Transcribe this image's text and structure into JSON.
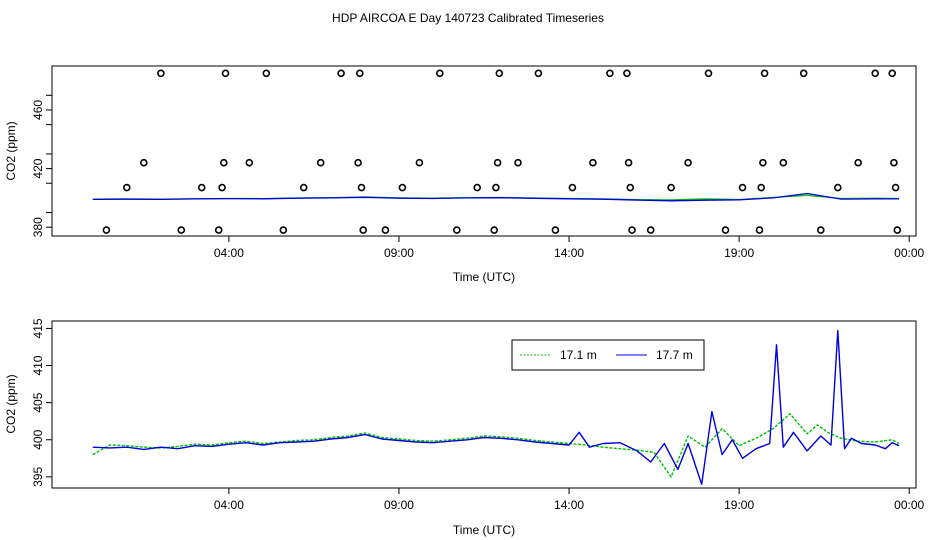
{
  "title": "HDP AIRCOA E  Day 140723  Calibrated Timeseries",
  "chart_data": [
    {
      "type": "scatter",
      "xlabel": "Time (UTC)",
      "ylabel": "CO2 (ppm)",
      "x_ticks": [
        "04:00",
        "09:00",
        "14:00",
        "19:00",
        "00:00"
      ],
      "x_tick_hours": [
        4,
        9,
        14,
        19,
        24
      ],
      "xlim_hours": [
        -1.2,
        24.2
      ],
      "y_ticks": [
        380,
        420,
        460
      ],
      "ylim": [
        374,
        490
      ],
      "grid": false,
      "calibration_points": [
        {
          "hour": 0.4,
          "co2": 378
        },
        {
          "hour": 1.0,
          "co2": 407
        },
        {
          "hour": 1.5,
          "co2": 424
        },
        {
          "hour": 2.0,
          "co2": 485
        },
        {
          "hour": 2.6,
          "co2": 378
        },
        {
          "hour": 3.2,
          "co2": 407
        },
        {
          "hour": 3.7,
          "co2": 378
        },
        {
          "hour": 3.8,
          "co2": 407
        },
        {
          "hour": 3.85,
          "co2": 424
        },
        {
          "hour": 3.9,
          "co2": 485
        },
        {
          "hour": 4.6,
          "co2": 424
        },
        {
          "hour": 5.1,
          "co2": 485
        },
        {
          "hour": 5.6,
          "co2": 378
        },
        {
          "hour": 6.2,
          "co2": 407
        },
        {
          "hour": 6.7,
          "co2": 424
        },
        {
          "hour": 7.3,
          "co2": 485
        },
        {
          "hour": 7.8,
          "co2": 424
        },
        {
          "hour": 7.85,
          "co2": 485
        },
        {
          "hour": 7.9,
          "co2": 407
        },
        {
          "hour": 7.95,
          "co2": 378
        },
        {
          "hour": 8.6,
          "co2": 378
        },
        {
          "hour": 9.1,
          "co2": 407
        },
        {
          "hour": 9.6,
          "co2": 424
        },
        {
          "hour": 10.2,
          "co2": 485
        },
        {
          "hour": 10.7,
          "co2": 378
        },
        {
          "hour": 11.3,
          "co2": 407
        },
        {
          "hour": 11.8,
          "co2": 378
        },
        {
          "hour": 11.85,
          "co2": 407
        },
        {
          "hour": 11.9,
          "co2": 424
        },
        {
          "hour": 11.95,
          "co2": 485
        },
        {
          "hour": 12.5,
          "co2": 424
        },
        {
          "hour": 13.1,
          "co2": 485
        },
        {
          "hour": 13.6,
          "co2": 378
        },
        {
          "hour": 14.1,
          "co2": 407
        },
        {
          "hour": 14.7,
          "co2": 424
        },
        {
          "hour": 15.2,
          "co2": 485
        },
        {
          "hour": 15.7,
          "co2": 485
        },
        {
          "hour": 15.75,
          "co2": 424
        },
        {
          "hour": 15.8,
          "co2": 407
        },
        {
          "hour": 15.85,
          "co2": 378
        },
        {
          "hour": 16.4,
          "co2": 378
        },
        {
          "hour": 17.0,
          "co2": 407
        },
        {
          "hour": 17.5,
          "co2": 424
        },
        {
          "hour": 18.1,
          "co2": 485
        },
        {
          "hour": 18.6,
          "co2": 378
        },
        {
          "hour": 19.1,
          "co2": 407
        },
        {
          "hour": 19.6,
          "co2": 378
        },
        {
          "hour": 19.65,
          "co2": 407
        },
        {
          "hour": 19.7,
          "co2": 424
        },
        {
          "hour": 19.75,
          "co2": 485
        },
        {
          "hour": 20.3,
          "co2": 424
        },
        {
          "hour": 20.9,
          "co2": 485
        },
        {
          "hour": 21.4,
          "co2": 378
        },
        {
          "hour": 21.9,
          "co2": 407
        },
        {
          "hour": 22.5,
          "co2": 424
        },
        {
          "hour": 23.0,
          "co2": 485
        },
        {
          "hour": 23.5,
          "co2": 485
        },
        {
          "hour": 23.55,
          "co2": 424
        },
        {
          "hour": 23.6,
          "co2": 407
        },
        {
          "hour": 23.65,
          "co2": 378
        }
      ],
      "series": [
        {
          "name": "17.1 m",
          "color": "#00c000",
          "x": [
            0,
            1,
            2,
            3,
            4,
            5,
            6,
            7,
            8,
            9,
            10,
            11,
            12,
            13,
            14,
            15,
            16,
            17,
            18,
            19,
            20,
            21,
            22,
            23,
            23.7
          ],
          "values": [
            399.2,
            399.3,
            399.2,
            399.4,
            399.6,
            399.5,
            399.9,
            400.2,
            400.6,
            400.0,
            399.8,
            400.2,
            400.3,
            399.9,
            399.6,
            399.3,
            398.8,
            398.6,
            399.3,
            398.9,
            400.3,
            401.8,
            399.6,
            399.7,
            399.6
          ]
        },
        {
          "name": "17.7 m",
          "color": "#0000e0",
          "x": [
            0,
            1,
            2,
            3,
            4,
            5,
            6,
            7,
            8,
            9,
            10,
            11,
            12,
            13,
            14,
            15,
            16,
            17,
            18,
            19,
            20,
            21,
            22,
            23,
            23.7
          ],
          "values": [
            399.0,
            399.1,
            399.0,
            399.3,
            399.5,
            399.4,
            399.8,
            400.0,
            400.4,
            399.8,
            399.6,
            400.0,
            400.1,
            399.7,
            399.4,
            399.1,
            398.5,
            398.0,
            398.4,
            398.7,
            400.0,
            403.0,
            399.2,
            399.4,
            399.3
          ]
        }
      ]
    },
    {
      "type": "line",
      "xlabel": "Time (UTC)",
      "ylabel": "CO2 (ppm)",
      "x_ticks": [
        "04:00",
        "09:00",
        "14:00",
        "19:00",
        "00:00"
      ],
      "x_tick_hours": [
        4,
        9,
        14,
        19,
        24
      ],
      "xlim_hours": [
        -1.2,
        24.2
      ],
      "y_ticks": [
        395,
        400,
        405,
        410,
        415
      ],
      "ylim": [
        393.5,
        416
      ],
      "grid": false,
      "legend_position": "top-right",
      "series": [
        {
          "name": "17.1 m",
          "color": "#00c000",
          "x": [
            0,
            0.5,
            1,
            1.5,
            2,
            2.5,
            3,
            3.5,
            4,
            4.5,
            5,
            5.5,
            6,
            6.5,
            7,
            7.5,
            8,
            8.5,
            9,
            9.5,
            10,
            10.5,
            11,
            11.5,
            12,
            12.5,
            13,
            13.5,
            14,
            14.5,
            15,
            15.5,
            16,
            16.5,
            17,
            17.5,
            18,
            18.5,
            19,
            19.5,
            20,
            20.5,
            21,
            21.3,
            21.6,
            22,
            22.5,
            23,
            23.5,
            23.7
          ],
          "values": [
            398.0,
            399.3,
            399.2,
            399.0,
            398.9,
            399.1,
            399.4,
            399.3,
            399.6,
            399.8,
            399.5,
            399.7,
            399.9,
            400.0,
            400.3,
            400.5,
            400.9,
            400.3,
            400.1,
            399.9,
            399.8,
            400.0,
            400.2,
            400.5,
            400.4,
            400.2,
            399.9,
            399.7,
            399.5,
            399.3,
            399.0,
            398.8,
            398.6,
            398.3,
            395.0,
            400.5,
            399.0,
            401.5,
            399.2,
            400.2,
            401.5,
            403.5,
            400.8,
            402.0,
            401.0,
            400.2,
            399.8,
            399.7,
            400.0,
            399.5
          ]
        },
        {
          "name": "17.7 m",
          "color": "#0000e0",
          "x": [
            0,
            0.5,
            1,
            1.5,
            2,
            2.5,
            3,
            3.5,
            4,
            4.5,
            5,
            5.5,
            6,
            6.5,
            7,
            7.5,
            8,
            8.5,
            9,
            9.5,
            10,
            10.5,
            11,
            11.5,
            12,
            12.5,
            13,
            13.5,
            14,
            14.3,
            14.6,
            15,
            15.5,
            16,
            16.4,
            16.8,
            17.2,
            17.5,
            17.9,
            18.2,
            18.5,
            18.8,
            19.1,
            19.5,
            19.9,
            20.1,
            20.3,
            20.6,
            21,
            21.4,
            21.7,
            21.9,
            22.1,
            22.3,
            22.6,
            23,
            23.3,
            23.5,
            23.7
          ],
          "values": [
            399.0,
            398.9,
            399.0,
            398.7,
            399.0,
            398.8,
            399.2,
            399.1,
            399.4,
            399.6,
            399.3,
            399.6,
            399.7,
            399.8,
            400.1,
            400.3,
            400.7,
            400.1,
            399.9,
            399.7,
            399.6,
            399.8,
            400.0,
            400.3,
            400.2,
            400.0,
            399.7,
            399.5,
            399.3,
            401.0,
            399.0,
            399.5,
            399.6,
            398.5,
            397.0,
            399.5,
            396.0,
            399.5,
            394.0,
            403.8,
            398.0,
            400.0,
            397.5,
            398.8,
            399.5,
            412.8,
            399.0,
            401.0,
            398.5,
            400.5,
            399.3,
            414.7,
            398.8,
            400.2,
            399.5,
            399.3,
            398.8,
            399.6,
            399.2
          ]
        }
      ]
    }
  ]
}
